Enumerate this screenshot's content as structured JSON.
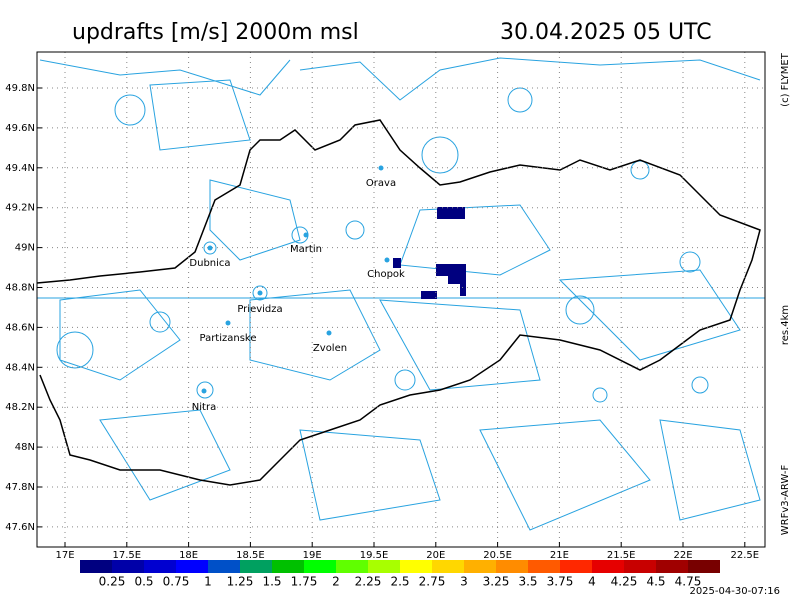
{
  "header": {
    "title": "updrafts [m/s] 2000m msl",
    "datetime": "30.04.2025 05 UTC"
  },
  "side": {
    "copyright": "(c) FLYMET",
    "resolution": "res.4km",
    "model": "WRFv3-ARW-F"
  },
  "map": {
    "lon_ticks": [
      {
        "value": 17,
        "label": "17E"
      },
      {
        "value": 17.5,
        "label": "17.5E"
      },
      {
        "value": 18,
        "label": "18E"
      },
      {
        "value": 18.5,
        "label": "18.5E"
      },
      {
        "value": 19,
        "label": "19E"
      },
      {
        "value": 19.5,
        "label": "19.5E"
      },
      {
        "value": 20,
        "label": "20E"
      },
      {
        "value": 20.5,
        "label": "20.5E"
      },
      {
        "value": 21,
        "label": "21E"
      },
      {
        "value": 21.5,
        "label": "21.5E"
      },
      {
        "value": 22,
        "label": "22E"
      },
      {
        "value": 22.5,
        "label": "22.5E"
      }
    ],
    "lat_ticks": [
      {
        "value": 49.8,
        "label": "49.8N"
      },
      {
        "value": 49.6,
        "label": "49.6N"
      },
      {
        "value": 49.4,
        "label": "49.4N"
      },
      {
        "value": 49.2,
        "label": "49.2N"
      },
      {
        "value": 49,
        "label": "49N"
      },
      {
        "value": 48.8,
        "label": "48.8N"
      },
      {
        "value": 48.6,
        "label": "48.6N"
      },
      {
        "value": 48.4,
        "label": "48.4N"
      },
      {
        "value": 48.2,
        "label": "48.2N"
      },
      {
        "value": 48,
        "label": "48N"
      },
      {
        "value": 47.8,
        "label": "47.8N"
      },
      {
        "value": 47.6,
        "label": "47.6N"
      }
    ],
    "cities": [
      "Orava",
      "Martin",
      "Dubnica",
      "Chopok",
      "Prievidza",
      "Partizanske",
      "Zvolen",
      "Nitra"
    ]
  },
  "legend": {
    "colors": [
      "#000080",
      "#0000a8",
      "#0000d0",
      "#0000ff",
      "#0050c8",
      "#00a060",
      "#00c000",
      "#00ff00",
      "#60ff00",
      "#a8ff00",
      "#ffff00",
      "#ffd700",
      "#ffb000",
      "#ff8c00",
      "#ff5a00",
      "#ff2800",
      "#e60000",
      "#c80000",
      "#a00000",
      "#780000"
    ],
    "labels": [
      0.25,
      0.5,
      0.75,
      1,
      1.25,
      1.5,
      1.75,
      2,
      2.25,
      2.5,
      2.75,
      3,
      3.25,
      3.5,
      3.75,
      4,
      4.25,
      4.5,
      4.75
    ]
  },
  "footer": {
    "timestamp": "2025-04-30-07:16"
  }
}
